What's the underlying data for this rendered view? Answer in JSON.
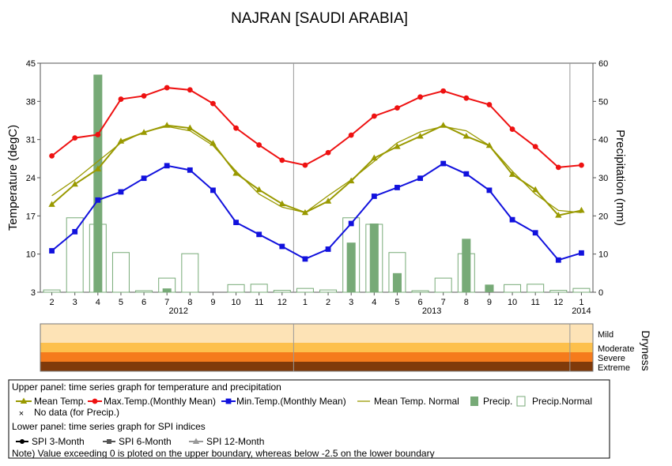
{
  "chart_data": {
    "type": "line",
    "title": "NAJRAN [SAUDI ARABIA]",
    "x_labels": [
      "2",
      "3",
      "4",
      "5",
      "6",
      "7",
      "8",
      "9",
      "10",
      "11",
      "12",
      "1",
      "2",
      "3",
      "4",
      "5",
      "6",
      "7",
      "8",
      "9",
      "10",
      "11",
      "12",
      "1"
    ],
    "year_labels": [
      {
        "label": "2012",
        "index": 5.5
      },
      {
        "label": "2013",
        "index": 16.5
      },
      {
        "label": "2014",
        "index": 23
      }
    ],
    "year_boundaries": [
      10.5,
      22.5
    ],
    "y_left": {
      "label": "Temperature (degC)",
      "ylim": [
        3,
        45
      ],
      "ticks": [
        3,
        10,
        17,
        24,
        31,
        38,
        45
      ]
    },
    "y_right": {
      "label": "Precipitation (mm)",
      "ylim": [
        0,
        60
      ],
      "ticks": [
        0,
        10,
        20,
        30,
        40,
        50,
        60
      ]
    },
    "series": [
      {
        "name": "Max.Temp.(Monthly Mean)",
        "axis": "left",
        "color": "#ee1111",
        "marker": "circle",
        "values": [
          28.0,
          31.3,
          31.9,
          38.4,
          39.0,
          40.5,
          40.1,
          37.6,
          33.1,
          30.0,
          27.2,
          26.3,
          28.6,
          31.8,
          35.3,
          36.8,
          38.8,
          39.9,
          38.6,
          37.4,
          32.9,
          29.7,
          25.9,
          26.3
        ]
      },
      {
        "name": "Mean Temp.",
        "axis": "left",
        "color": "#999900",
        "marker": "triangle",
        "values": [
          19.1,
          22.8,
          25.6,
          30.7,
          32.3,
          33.6,
          33.1,
          30.3,
          24.8,
          21.8,
          19.2,
          17.6,
          19.7,
          23.4,
          27.6,
          29.7,
          31.6,
          33.6,
          31.6,
          29.9,
          24.6,
          21.8,
          17.1,
          18.0
        ]
      },
      {
        "name": "Min.Temp.(Monthly Mean)",
        "axis": "left",
        "color": "#1111dd",
        "marker": "square",
        "values": [
          10.6,
          14.1,
          19.9,
          21.4,
          23.9,
          26.2,
          25.4,
          21.7,
          15.8,
          13.6,
          11.4,
          9.1,
          10.9,
          15.6,
          20.6,
          22.2,
          23.9,
          26.6,
          24.7,
          21.7,
          16.3,
          13.9,
          8.9,
          10.2
        ]
      },
      {
        "name": "Mean Temp. Normal",
        "axis": "left",
        "color": "#999900",
        "marker": "none",
        "values": [
          20.7,
          23.6,
          27.0,
          30.4,
          32.4,
          33.4,
          32.6,
          29.9,
          25.2,
          21.0,
          18.6,
          17.6,
          20.7,
          23.6,
          27.0,
          30.4,
          32.4,
          33.4,
          32.6,
          29.9,
          25.2,
          21.0,
          18.0,
          17.6
        ]
      },
      {
        "name": "Precip.",
        "axis": "right",
        "color": "#77aa77",
        "type": "bar",
        "values": [
          0,
          0,
          57,
          0,
          0,
          1,
          0,
          0,
          0,
          0,
          0,
          0,
          0,
          13,
          18,
          5,
          0,
          0,
          14,
          2,
          0,
          0,
          0,
          0
        ]
      },
      {
        "name": "Precip.Normal",
        "axis": "right",
        "color": "#77aa77",
        "type": "bar-outline",
        "values": [
          0.6,
          19.5,
          17.8,
          10.4,
          0.4,
          3.7,
          10.1,
          0,
          2.0,
          2.1,
          0.5,
          1.0,
          0.6,
          19.5,
          17.8,
          10.4,
          0.4,
          3.7,
          10.1,
          0,
          2.0,
          2.1,
          0.5,
          1.0
        ]
      }
    ],
    "spi_panel": {
      "ylabel": "Dryness",
      "bands": [
        {
          "label": "Mild",
          "color": "#fde3b6"
        },
        {
          "label": "Moderate",
          "color": "#fdc04c"
        },
        {
          "label": "Severe",
          "color": "#f57b1c"
        },
        {
          "label": "Extreme",
          "color": "#803a0a"
        }
      ]
    },
    "legend": {
      "upper_title": "Upper panel: time series graph for temperature and precipitation",
      "upper_items": [
        "Mean Temp.",
        "Max.Temp.(Monthly Mean)",
        "Min.Temp.(Monthly Mean)",
        "Mean Temp. Normal",
        "Precip.",
        "Precip.Normal"
      ],
      "nodata": "No data (for Precip.)",
      "lower_title": "Lower panel: time series graph for SPI indices",
      "lower_items": [
        "SPI 3-Month",
        "SPI 6-Month",
        "SPI 12-Month"
      ],
      "note": "Note) Value exceeding 0 is ploted on the upper boundary, whereas below -2.5 on the lower boundary"
    }
  }
}
